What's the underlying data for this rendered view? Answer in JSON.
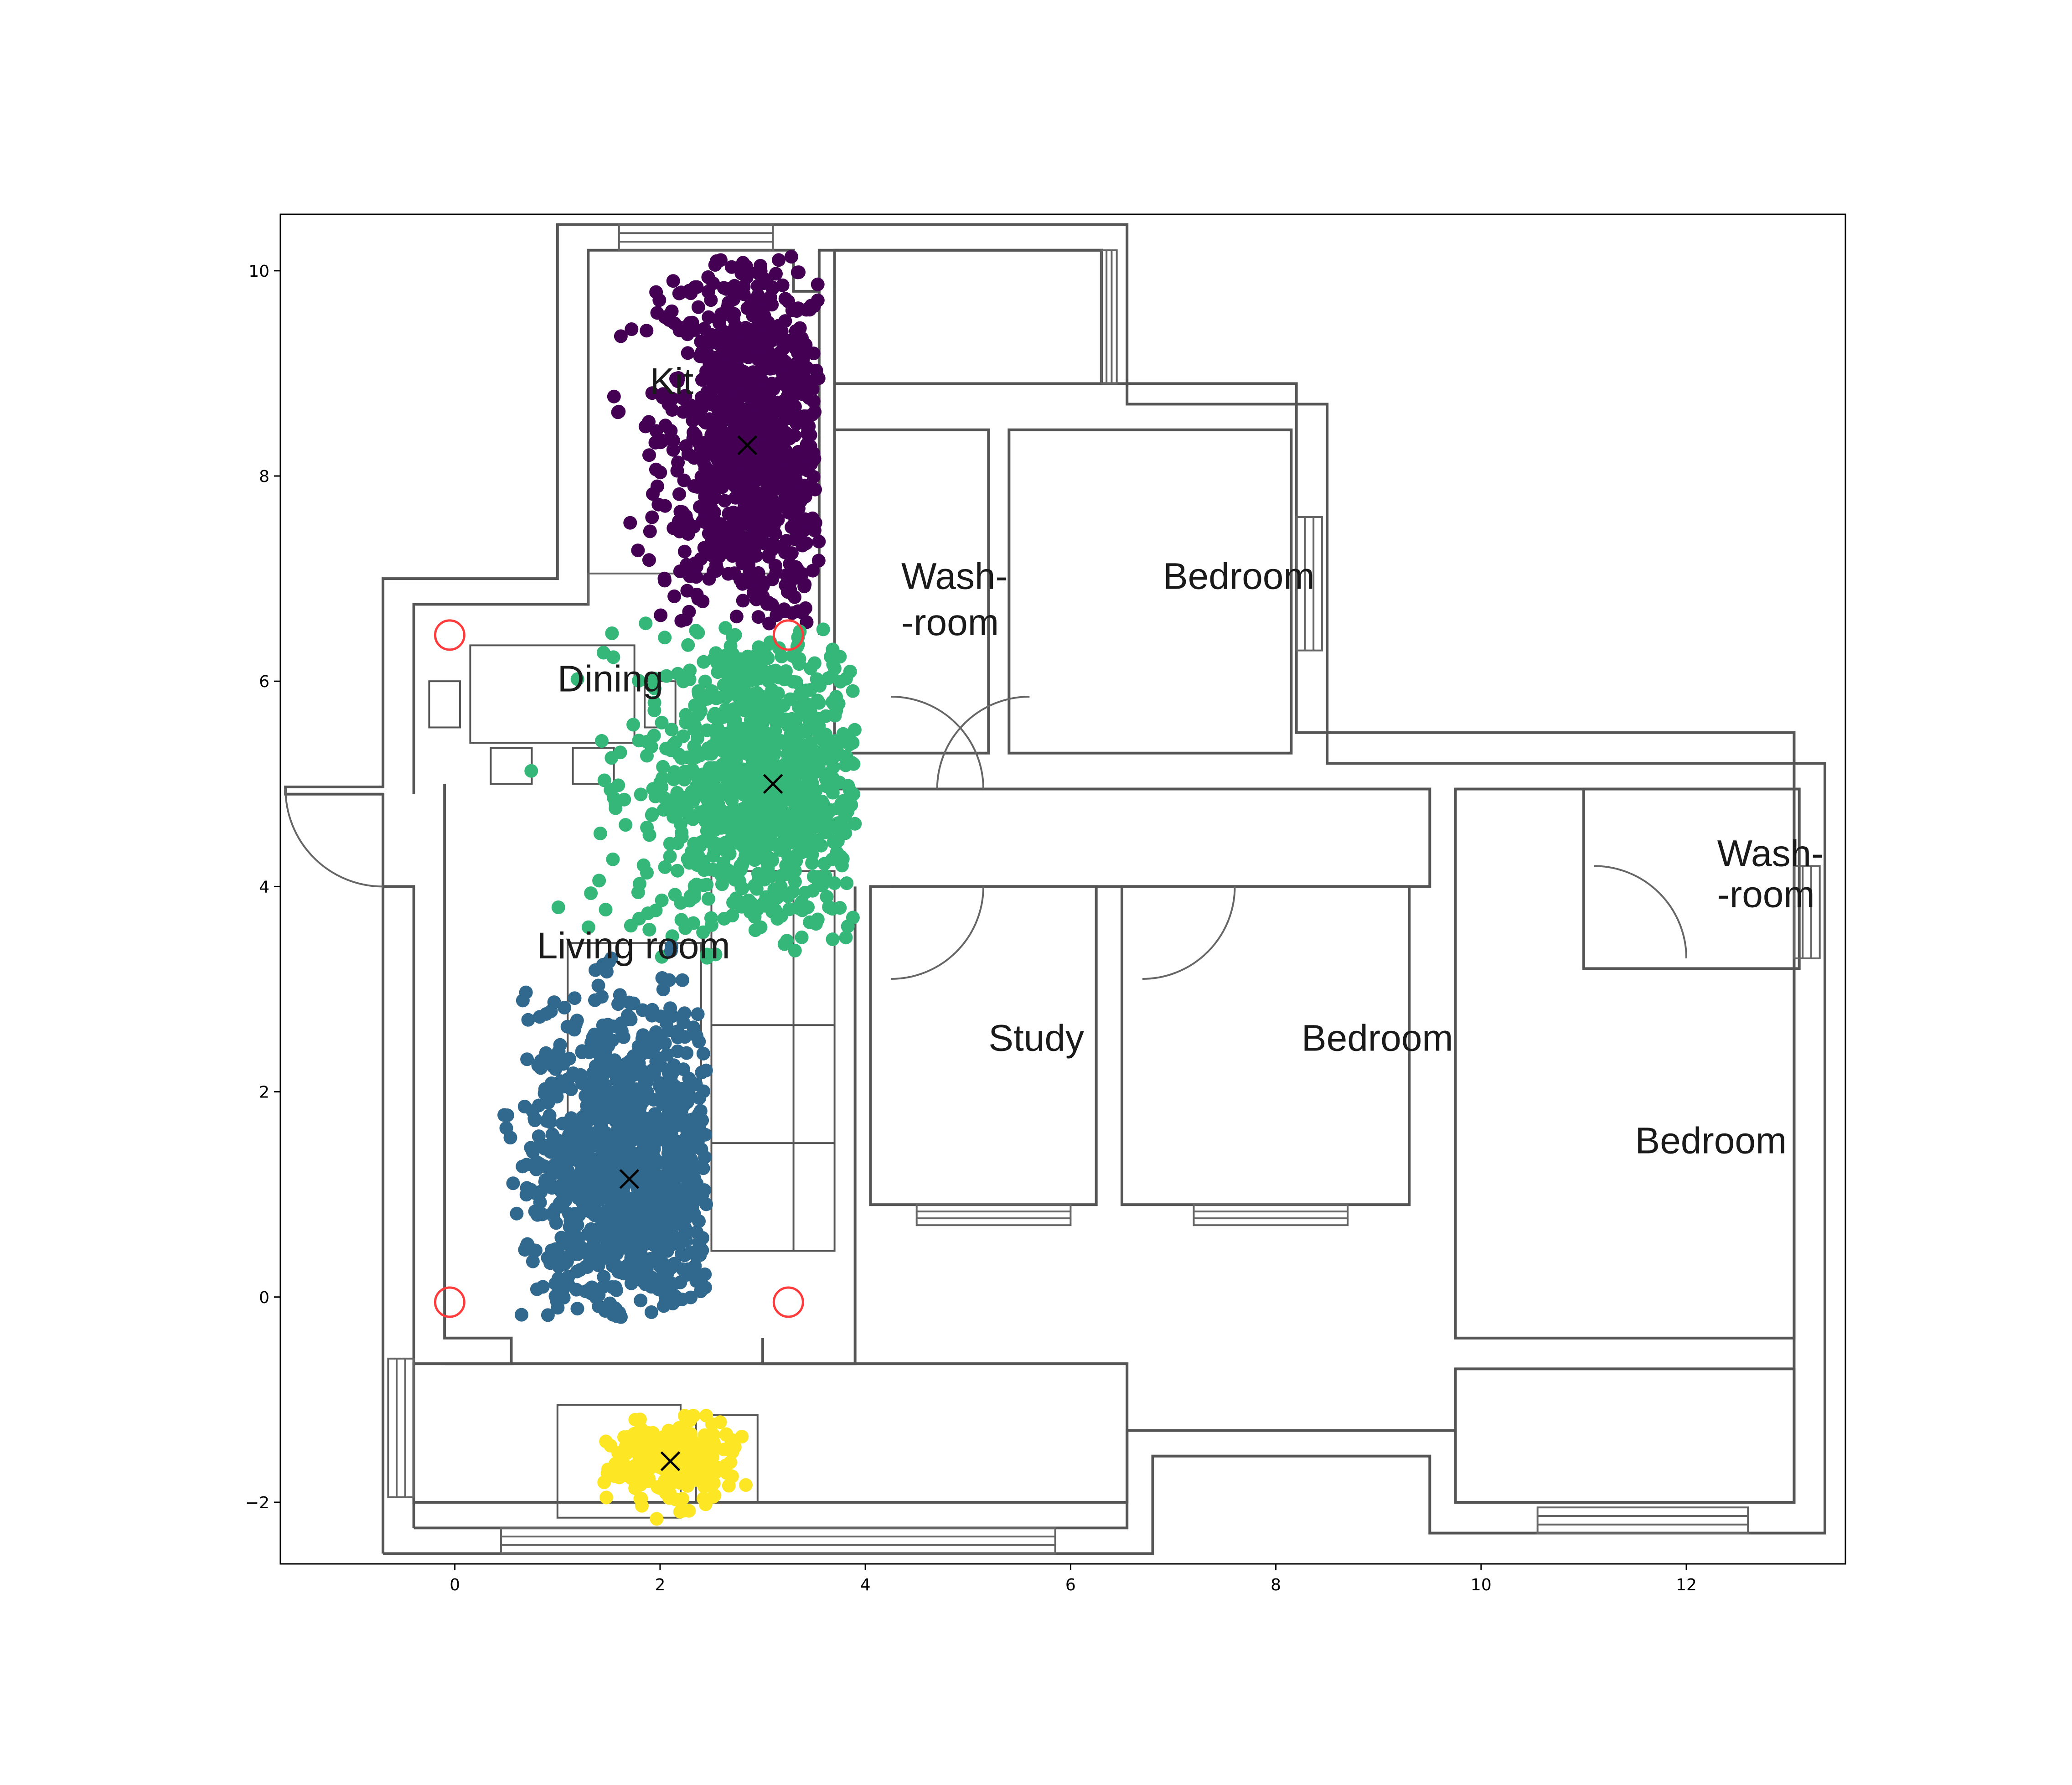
{
  "chart_data": {
    "type": "scatter",
    "title": "",
    "xlabel": "",
    "ylabel": "",
    "xlim": [
      -1.7,
      13.55
    ],
    "ylim": [
      -2.6,
      10.55
    ],
    "xticks": [
      0,
      2,
      4,
      6,
      8,
      10,
      12
    ],
    "yticks": [
      -2,
      0,
      2,
      4,
      6,
      8,
      10
    ],
    "grid": false,
    "legend": "none",
    "room_labels": [
      {
        "text": "Kit",
        "x": 1.9,
        "y": 8.8
      },
      {
        "text": "Dining",
        "x": 1.0,
        "y": 5.9
      },
      {
        "text": "Living room",
        "x": 0.8,
        "y": 3.3
      },
      {
        "text": "Wash-",
        "x": 4.35,
        "y": 6.9
      },
      {
        "text": "-room",
        "x": 4.35,
        "y": 6.45
      },
      {
        "text": "Bedroom",
        "x": 6.9,
        "y": 6.9
      },
      {
        "text": "Study",
        "x": 5.2,
        "y": 2.4
      },
      {
        "text": "Bedroom",
        "x": 8.25,
        "y": 2.4
      },
      {
        "text": "Wash-",
        "x": 12.3,
        "y": 4.2
      },
      {
        "text": "-room",
        "x": 12.3,
        "y": 3.8
      },
      {
        "text": "Bedroom",
        "x": 11.5,
        "y": 1.4
      }
    ],
    "anchors": [
      {
        "x": -0.05,
        "y": 6.45
      },
      {
        "x": 3.25,
        "y": 6.45
      },
      {
        "x": -0.05,
        "y": -0.05
      },
      {
        "x": 3.25,
        "y": -0.05
      }
    ],
    "centroids": [
      {
        "x": 2.85,
        "y": 8.3
      },
      {
        "x": 3.1,
        "y": 5.0
      },
      {
        "x": 1.7,
        "y": 1.15
      },
      {
        "x": 2.1,
        "y": -1.6
      }
    ],
    "series": [
      {
        "color": "#440154",
        "center": [
          2.9,
          8.4
        ],
        "spread": [
          0.45,
          0.95
        ],
        "count": 900,
        "clip": {
          "xmin": 1.4,
          "xmax": 3.55,
          "ymin": 6.55,
          "ymax": 10.15
        }
      },
      {
        "color": "#35b779",
        "center": [
          3.0,
          5.0
        ],
        "spread": [
          0.6,
          0.8
        ],
        "count": 900,
        "clip": {
          "xmin": 0.4,
          "xmax": 3.9,
          "ymin": 3.3,
          "ymax": 6.6
        }
      },
      {
        "color": "#31688e",
        "center": [
          1.7,
          1.2
        ],
        "spread": [
          0.5,
          0.8
        ],
        "count": 1100,
        "clip": {
          "xmin": 0.45,
          "xmax": 2.45,
          "ymin": -0.2,
          "ymax": 3.75
        }
      },
      {
        "color": "#fde725",
        "center": [
          2.1,
          -1.6
        ],
        "spread": [
          0.32,
          0.2
        ],
        "count": 280,
        "clip": {
          "xmin": 1.45,
          "xmax": 2.85,
          "ymin": -2.2,
          "ymax": -1.15
        }
      }
    ]
  }
}
